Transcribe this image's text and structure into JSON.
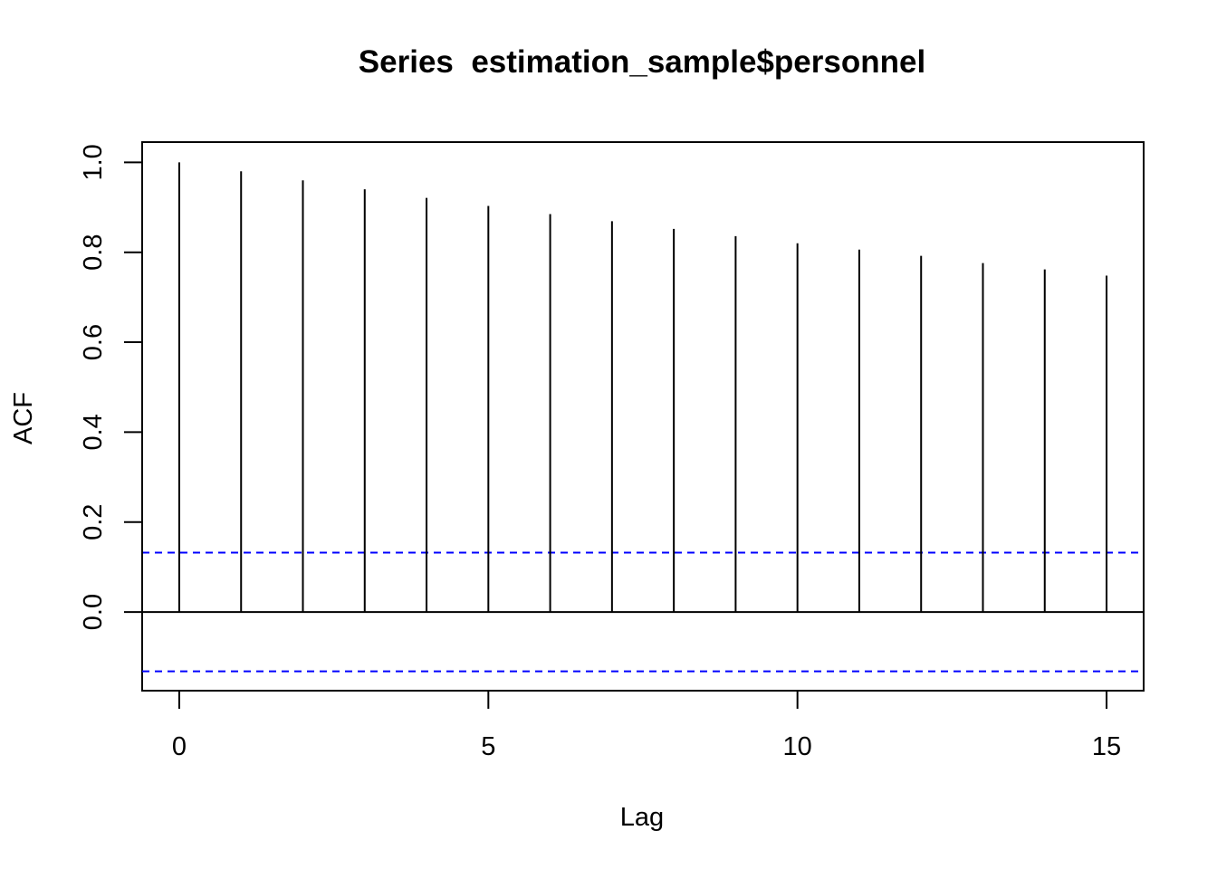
{
  "chart_data": {
    "type": "bar",
    "subtype": "acf-correlogram",
    "title": "Series  estimation_sample$personnel",
    "xlabel": "Lag",
    "ylabel": "ACF",
    "x": [
      0,
      1,
      2,
      3,
      4,
      5,
      6,
      7,
      8,
      9,
      10,
      11,
      12,
      13,
      14,
      15
    ],
    "values": [
      1.0,
      0.98,
      0.96,
      0.94,
      0.921,
      0.903,
      0.885,
      0.869,
      0.852,
      0.836,
      0.82,
      0.806,
      0.792,
      0.776,
      0.762,
      0.748
    ],
    "xlim": [
      -0.6,
      15.6
    ],
    "ylim": [
      -0.175,
      1.045
    ],
    "xticks": [
      0,
      5,
      10,
      15
    ],
    "xtick_labels": [
      "0",
      "5",
      "10",
      "15"
    ],
    "yticks": [
      0.0,
      0.2,
      0.4,
      0.6,
      0.8,
      1.0
    ],
    "ytick_labels": [
      "0.0",
      "0.2",
      "0.4",
      "0.6",
      "0.8",
      "1.0"
    ],
    "confidence_bounds": [
      0.132,
      -0.132
    ],
    "confidence_color": "#0000ff",
    "bar_color": "#000000",
    "grid": false
  }
}
